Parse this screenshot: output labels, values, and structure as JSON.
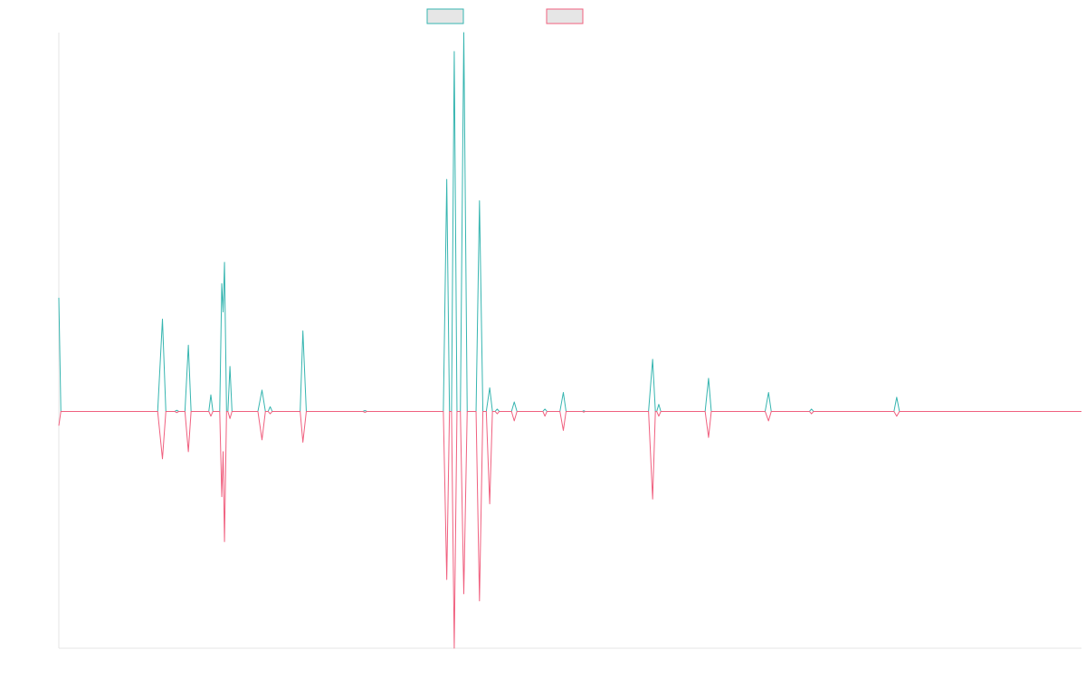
{
  "chart_data": {
    "type": "line",
    "title": "",
    "xlabel": "",
    "ylabel": "",
    "grid": false,
    "legend_position": "top-center",
    "x_range": [
      0,
      150
    ],
    "ylim": [
      -1.0,
      1.6
    ],
    "series": [
      {
        "color": "#36b5b0",
        "points": [
          [
            0,
            0.48
          ],
          [
            0.3,
            0
          ],
          [
            14.5,
            0
          ],
          [
            15.2,
            0.39
          ],
          [
            15.7,
            0
          ],
          [
            17.0,
            0
          ],
          [
            17.3,
            0.005
          ],
          [
            17.6,
            0
          ],
          [
            18.5,
            0
          ],
          [
            19.0,
            0.28
          ],
          [
            19.4,
            0
          ],
          [
            22.0,
            0
          ],
          [
            22.3,
            0.07
          ],
          [
            22.6,
            0
          ],
          [
            23.6,
            0
          ],
          [
            23.9,
            0.54
          ],
          [
            24.1,
            0.42
          ],
          [
            24.3,
            0.63
          ],
          [
            24.6,
            0
          ],
          [
            24.8,
            0
          ],
          [
            25.1,
            0.19
          ],
          [
            25.4,
            0
          ],
          [
            29.2,
            0
          ],
          [
            29.8,
            0.09
          ],
          [
            30.3,
            0
          ],
          [
            30.7,
            0
          ],
          [
            31.0,
            0.02
          ],
          [
            31.3,
            0
          ],
          [
            35.4,
            0
          ],
          [
            35.8,
            0.34
          ],
          [
            36.3,
            0
          ],
          [
            44.6,
            0
          ],
          [
            44.9,
            0.004
          ],
          [
            45.2,
            0
          ],
          [
            56.4,
            0
          ],
          [
            56.9,
            0.98
          ],
          [
            57.3,
            0
          ],
          [
            57.6,
            0
          ],
          [
            58.0,
            1.52
          ],
          [
            58.4,
            0
          ],
          [
            58.9,
            0
          ],
          [
            59.4,
            1.6
          ],
          [
            59.9,
            0
          ],
          [
            61.2,
            0
          ],
          [
            61.7,
            0.89
          ],
          [
            62.2,
            0
          ],
          [
            62.7,
            0
          ],
          [
            63.2,
            0.1
          ],
          [
            63.6,
            0
          ],
          [
            64.0,
            0
          ],
          [
            64.3,
            0.01
          ],
          [
            64.6,
            0
          ],
          [
            66.4,
            0
          ],
          [
            66.8,
            0.04
          ],
          [
            67.2,
            0
          ],
          [
            71.0,
            0
          ],
          [
            71.3,
            0.01
          ],
          [
            71.6,
            0
          ],
          [
            73.5,
            0
          ],
          [
            74.0,
            0.08
          ],
          [
            74.4,
            0
          ],
          [
            76.8,
            0
          ],
          [
            77.0,
            0.003
          ],
          [
            77.2,
            0
          ],
          [
            86.5,
            0
          ],
          [
            87.1,
            0.22
          ],
          [
            87.5,
            0
          ],
          [
            87.7,
            0
          ],
          [
            88.0,
            0.03
          ],
          [
            88.3,
            0
          ],
          [
            94.8,
            0
          ],
          [
            95.3,
            0.14
          ],
          [
            95.7,
            0
          ],
          [
            103.6,
            0
          ],
          [
            104.1,
            0.08
          ],
          [
            104.5,
            0
          ],
          [
            110.1,
            0
          ],
          [
            110.4,
            0.01
          ],
          [
            110.7,
            0
          ],
          [
            122.5,
            0
          ],
          [
            122.9,
            0.06
          ],
          [
            123.3,
            0
          ],
          [
            150,
            0
          ]
        ]
      },
      {
        "color": "#f0607f",
        "points": [
          [
            0,
            -0.06
          ],
          [
            0.3,
            0
          ],
          [
            14.5,
            0
          ],
          [
            15.2,
            -0.2
          ],
          [
            15.7,
            0
          ],
          [
            17.0,
            0
          ],
          [
            17.3,
            -0.005
          ],
          [
            17.6,
            0
          ],
          [
            18.5,
            0
          ],
          [
            19.0,
            -0.17
          ],
          [
            19.4,
            0
          ],
          [
            22.0,
            0
          ],
          [
            22.3,
            -0.02
          ],
          [
            22.6,
            0
          ],
          [
            23.6,
            0
          ],
          [
            23.9,
            -0.36
          ],
          [
            24.1,
            -0.17
          ],
          [
            24.3,
            -0.55
          ],
          [
            24.6,
            0
          ],
          [
            24.8,
            0
          ],
          [
            25.1,
            -0.03
          ],
          [
            25.4,
            0
          ],
          [
            29.2,
            0
          ],
          [
            29.8,
            -0.12
          ],
          [
            30.3,
            0
          ],
          [
            30.7,
            0
          ],
          [
            31.0,
            -0.01
          ],
          [
            31.3,
            0
          ],
          [
            35.4,
            0
          ],
          [
            35.8,
            -0.13
          ],
          [
            36.3,
            0
          ],
          [
            44.6,
            0
          ],
          [
            44.9,
            -0.004
          ],
          [
            45.2,
            0
          ],
          [
            56.4,
            0
          ],
          [
            56.9,
            -0.71
          ],
          [
            57.3,
            0
          ],
          [
            57.6,
            0
          ],
          [
            58.0,
            -1.0
          ],
          [
            58.4,
            0
          ],
          [
            58.9,
            0
          ],
          [
            59.4,
            -0.77
          ],
          [
            59.9,
            0
          ],
          [
            61.2,
            0
          ],
          [
            61.7,
            -0.8
          ],
          [
            62.2,
            0
          ],
          [
            62.7,
            0
          ],
          [
            63.2,
            -0.39
          ],
          [
            63.6,
            0
          ],
          [
            64.0,
            0
          ],
          [
            64.3,
            -0.01
          ],
          [
            64.6,
            0
          ],
          [
            66.4,
            0
          ],
          [
            66.8,
            -0.04
          ],
          [
            67.2,
            0
          ],
          [
            71.0,
            0
          ],
          [
            71.3,
            -0.02
          ],
          [
            71.6,
            0
          ],
          [
            73.5,
            0
          ],
          [
            74.0,
            -0.08
          ],
          [
            74.4,
            0
          ],
          [
            76.8,
            0
          ],
          [
            77.0,
            -0.003
          ],
          [
            77.2,
            0
          ],
          [
            86.5,
            0
          ],
          [
            87.1,
            -0.37
          ],
          [
            87.5,
            0
          ],
          [
            87.7,
            0
          ],
          [
            88.0,
            -0.02
          ],
          [
            88.3,
            0
          ],
          [
            94.8,
            0
          ],
          [
            95.3,
            -0.11
          ],
          [
            95.7,
            0
          ],
          [
            103.6,
            0
          ],
          [
            104.1,
            -0.04
          ],
          [
            104.5,
            0
          ],
          [
            110.1,
            0
          ],
          [
            110.4,
            -0.01
          ],
          [
            110.7,
            0
          ],
          [
            122.5,
            0
          ],
          [
            122.9,
            -0.02
          ],
          [
            123.3,
            0
          ],
          [
            150,
            0
          ]
        ]
      }
    ]
  }
}
